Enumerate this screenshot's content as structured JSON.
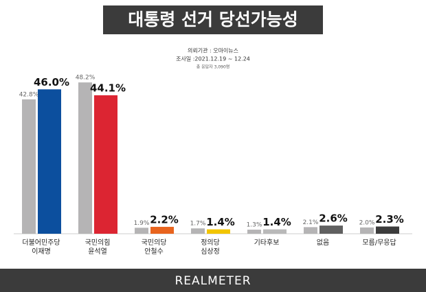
{
  "chart_data": {
    "type": "bar",
    "title": "대통령 선거 당선가능성",
    "notes": [
      "의뢰기관 : 오마이뉴스",
      "조사일 :2021.12.19 ~ 12.24",
      "총 응답자 3,090명"
    ],
    "categories": [
      "더불어민주당\n이재명",
      "국민의힘\n윤석열",
      "국민의당\n안철수",
      "정의당\n심상정",
      "기타후보",
      "없음",
      "모름/무응답"
    ],
    "series": [
      {
        "colors": [
          "#b5b4b5",
          "#b5b4b5",
          "#b5b4b5",
          "#b5b4b5",
          "#b5b4b5",
          "#b5b4b5",
          "#b5b4b5"
        ],
        "values": [
          42.8,
          48.2,
          1.9,
          1.7,
          1.3,
          2.1,
          2.0
        ],
        "value_labels": [
          "42.8%",
          "48.2%",
          "1.9%",
          "1.7%",
          "1.3%",
          "2.1%",
          "2.0%"
        ]
      },
      {
        "colors": [
          "#0c4f9e",
          "#dc2532",
          "#e8641e",
          "#f2c500",
          "#b9b9b9",
          "#606060",
          "#3c3c3c"
        ],
        "values": [
          46.0,
          44.1,
          2.2,
          1.4,
          1.4,
          2.6,
          2.3
        ],
        "value_labels": [
          "46.0%",
          "44.1%",
          "2.2%",
          "1.4%",
          "1.4%",
          "2.6%",
          "2.3%"
        ]
      }
    ],
    "ylim": [
      0,
      50
    ],
    "footer": "REALMETER"
  }
}
